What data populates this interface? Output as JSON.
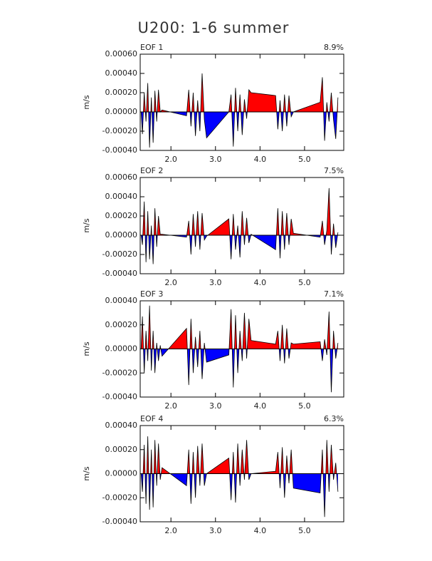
{
  "title": "U200: 1-6 summer",
  "chart_data": [
    {
      "type": "area",
      "title": "EOF 1",
      "annotation": "8.9%",
      "ylabel": "m/s",
      "positive_color": "#ff0000",
      "negative_color": "#0000ff",
      "line_color": "#000000",
      "xlim": [
        1.31,
        5.88
      ],
      "ylim": [
        -0.0004,
        0.0006
      ],
      "xticks": [
        {
          "value": 2,
          "label": "2.0"
        },
        {
          "value": 3,
          "label": "3.0"
        },
        {
          "value": 4,
          "label": "4.0"
        },
        {
          "value": 5,
          "label": "5.0"
        }
      ],
      "yticks": [
        {
          "value": 0.0006,
          "label": "0.00060"
        },
        {
          "value": 0.0004,
          "label": "0.00040"
        },
        {
          "value": 0.0002,
          "label": "0.00020"
        },
        {
          "value": 0,
          "label": "0.00000"
        },
        {
          "value": -0.0002,
          "label": "-0.00020"
        },
        {
          "value": -0.0004,
          "label": "-0.00040"
        }
      ],
      "x": [
        1.33,
        1.36,
        1.4,
        1.44,
        1.48,
        1.52,
        1.56,
        1.6,
        1.64,
        1.68,
        1.72,
        1.76,
        1.8,
        2.35,
        2.4,
        2.45,
        2.5,
        2.55,
        2.6,
        2.65,
        2.7,
        2.75,
        2.8,
        3.3,
        3.35,
        3.4,
        3.45,
        3.5,
        3.55,
        3.6,
        3.65,
        3.7,
        3.75,
        3.8,
        4.35,
        4.4,
        4.45,
        4.5,
        4.55,
        4.6,
        4.65,
        4.7,
        4.75,
        5.35,
        5.4,
        5.45,
        5.5,
        5.55,
        5.6,
        5.65,
        5.7,
        5.75
      ],
      "values": [
        0,
        -0.00023,
        0.0002,
        -0.0001,
        0.0003,
        -0.00037,
        0.00015,
        -0.00032,
        0.00022,
        -0.0001,
        0.00023,
        0,
        2e-05,
        -4e-05,
        0.00023,
        -0.00015,
        0.0002,
        -0.00025,
        0.00012,
        -0.0002,
        0.0004,
        -8e-05,
        -0.00027,
        0,
        0.00018,
        -0.00036,
        0.00025,
        -0.0002,
        0.00018,
        -0.00024,
        0.00013,
        -7e-05,
        0.00023,
        0.0002,
        0.00017,
        -0.00018,
        0.00012,
        -0.0002,
        0.00018,
        -0.00015,
        0.00017,
        -5e-05,
        0,
        0.0001,
        0.00036,
        -0.0003,
        0.0001,
        -0.0001,
        0.0002,
        -8e-05,
        -0.00028,
        0.00015
      ]
    },
    {
      "type": "area",
      "title": "EOF 2",
      "annotation": "7.5%",
      "ylabel": "m/s",
      "positive_color": "#ff0000",
      "negative_color": "#0000ff",
      "line_color": "#000000",
      "xlim": [
        1.31,
        5.88
      ],
      "ylim": [
        -0.0004,
        0.0006
      ],
      "xticks": [
        {
          "value": 2,
          "label": "2.0"
        },
        {
          "value": 3,
          "label": "3.0"
        },
        {
          "value": 4,
          "label": "4.0"
        },
        {
          "value": 5,
          "label": "5.0"
        }
      ],
      "yticks": [
        {
          "value": 0.0006,
          "label": "0.00060"
        },
        {
          "value": 0.0004,
          "label": "0.00040"
        },
        {
          "value": 0.0002,
          "label": "0.00020"
        },
        {
          "value": 0,
          "label": "0.00000"
        },
        {
          "value": -0.0002,
          "label": "-0.00020"
        },
        {
          "value": -0.0004,
          "label": "-0.00040"
        }
      ],
      "x": [
        1.33,
        1.36,
        1.4,
        1.44,
        1.48,
        1.52,
        1.56,
        1.6,
        1.64,
        1.68,
        1.72,
        1.76,
        1.8,
        2.35,
        2.4,
        2.45,
        2.5,
        2.55,
        2.6,
        2.65,
        2.7,
        2.75,
        2.8,
        3.3,
        3.35,
        3.4,
        3.45,
        3.5,
        3.55,
        3.6,
        3.65,
        3.7,
        3.75,
        3.8,
        4.35,
        4.4,
        4.45,
        4.5,
        4.55,
        4.6,
        4.65,
        4.7,
        4.75,
        5.35,
        5.4,
        5.45,
        5.5,
        5.55,
        5.6,
        5.65,
        5.7,
        5.75
      ],
      "values": [
        0,
        -0.0001,
        0.00035,
        -0.00028,
        0.00025,
        -0.00025,
        0.0001,
        -0.0003,
        0.00028,
        -0.00012,
        0.0002,
        1e-05,
        1e-05,
        -2e-05,
        0.00015,
        -0.0002,
        0.00022,
        -0.00012,
        0.00025,
        -0.00015,
        0.00023,
        -5e-05,
        -1e-05,
        0.00017,
        -0.00025,
        0.00022,
        -0.00015,
        0.0001,
        -0.00023,
        0.00025,
        -0.0001,
        0.00018,
        -8e-05,
        1e-05,
        -0.00015,
        0.00028,
        -0.00024,
        0.00025,
        -0.00015,
        0.00023,
        -0.0001,
        0.00017,
        2e-05,
        -2e-05,
        0.00015,
        -0.0001,
        5e-05,
        0.00049,
        -0.0002,
        0.00012,
        -0.00013,
        3e-05
      ]
    },
    {
      "type": "area",
      "title": "EOF 3",
      "annotation": "7.1%",
      "ylabel": "m/s",
      "positive_color": "#ff0000",
      "negative_color": "#0000ff",
      "line_color": "#000000",
      "xlim": [
        1.31,
        5.88
      ],
      "ylim": [
        -0.0004,
        0.0004
      ],
      "xticks": [
        {
          "value": 2,
          "label": "2.0"
        },
        {
          "value": 3,
          "label": "3.0"
        },
        {
          "value": 4,
          "label": "4.0"
        },
        {
          "value": 5,
          "label": "5.0"
        }
      ],
      "yticks": [
        {
          "value": 0.0004,
          "label": "0.00040"
        },
        {
          "value": 0.0002,
          "label": "0.00020"
        },
        {
          "value": 0,
          "label": "0.00000"
        },
        {
          "value": -0.0002,
          "label": "-0.00020"
        },
        {
          "value": -0.0004,
          "label": "-0.00040"
        }
      ],
      "x": [
        1.33,
        1.36,
        1.4,
        1.44,
        1.48,
        1.52,
        1.56,
        1.6,
        1.64,
        1.68,
        1.72,
        1.76,
        1.8,
        2.35,
        2.4,
        2.45,
        2.5,
        2.55,
        2.6,
        2.65,
        2.7,
        2.75,
        2.8,
        3.3,
        3.35,
        3.4,
        3.45,
        3.5,
        3.55,
        3.6,
        3.65,
        3.7,
        3.75,
        3.8,
        4.35,
        4.4,
        4.45,
        4.5,
        4.55,
        4.6,
        4.65,
        4.7,
        4.75,
        5.35,
        5.4,
        5.45,
        5.5,
        5.55,
        5.6,
        5.65,
        5.7,
        5.75
      ],
      "values": [
        0,
        0.00027,
        -0.0002,
        0.00015,
        -0.0001,
        0.00036,
        -0.00018,
        0.00015,
        -0.0002,
        5e-05,
        -0.0001,
        3e-05,
        -6e-05,
        0.00017,
        -0.0003,
        0.00025,
        -0.0002,
        0.0001,
        -0.00015,
        0.00015,
        -0.00025,
        5e-05,
        -0.00011,
        -5e-05,
        0.00033,
        -0.00032,
        0.00028,
        -0.0002,
        0.00015,
        -0.0001,
        0.0003,
        -8e-05,
        0.00025,
        7e-05,
        4e-05,
        0.00015,
        -0.0001,
        0.0002,
        -0.00012,
        0.00017,
        -8e-05,
        5e-05,
        4e-05,
        6e-05,
        -0.0001,
        8e-05,
        -5e-05,
        0.00031,
        -0.00036,
        0.00015,
        -8e-05,
        5e-05
      ]
    },
    {
      "type": "area",
      "title": "EOF 4",
      "annotation": "6.3%",
      "ylabel": "m/s",
      "positive_color": "#ff0000",
      "negative_color": "#0000ff",
      "line_color": "#000000",
      "xlim": [
        1.31,
        5.88
      ],
      "ylim": [
        -0.0004,
        0.0004
      ],
      "xticks": [
        {
          "value": 2,
          "label": "2.0"
        },
        {
          "value": 3,
          "label": "3.0"
        },
        {
          "value": 4,
          "label": "4.0"
        },
        {
          "value": 5,
          "label": "5.0"
        }
      ],
      "yticks": [
        {
          "value": 0.0004,
          "label": "0.00040"
        },
        {
          "value": 0.0002,
          "label": "0.00020"
        },
        {
          "value": 0,
          "label": "0.00000"
        },
        {
          "value": -0.0002,
          "label": "-0.00020"
        },
        {
          "value": -0.0004,
          "label": "-0.00040"
        }
      ],
      "x": [
        1.33,
        1.36,
        1.4,
        1.44,
        1.48,
        1.52,
        1.56,
        1.6,
        1.64,
        1.68,
        1.72,
        1.76,
        1.8,
        2.35,
        2.4,
        2.45,
        2.5,
        2.55,
        2.6,
        2.65,
        2.7,
        2.75,
        2.8,
        3.3,
        3.35,
        3.4,
        3.45,
        3.5,
        3.55,
        3.6,
        3.65,
        3.7,
        3.75,
        3.8,
        4.35,
        4.4,
        4.45,
        4.5,
        4.55,
        4.6,
        4.65,
        4.7,
        4.75,
        5.35,
        5.4,
        5.45,
        5.5,
        5.55,
        5.6,
        5.65,
        5.7,
        5.75
      ],
      "values": [
        0,
        -0.00015,
        0.00024,
        -0.00025,
        0.00031,
        -0.0003,
        0.0002,
        -0.00028,
        0.00028,
        -0.0001,
        0.00025,
        -5e-05,
        5e-05,
        -0.0001,
        0.0002,
        -0.00025,
        0.00018,
        -0.0002,
        0.00023,
        -0.0001,
        0.00025,
        -0.0001,
        0,
        0.00013,
        -0.00022,
        0.00018,
        -0.00024,
        0.00025,
        -0.0001,
        0.0002,
        -5e-05,
        0.00028,
        -5e-05,
        0,
        2e-05,
        0.00018,
        -0.00012,
        0.00022,
        -0.0002,
        0.00015,
        -8e-05,
        0.0002,
        -0.00012,
        -0.00016,
        0.0002,
        -0.00036,
        0.00028,
        -0.00015,
        0.00024,
        -5e-05,
        9e-05,
        -0.00015
      ]
    }
  ]
}
